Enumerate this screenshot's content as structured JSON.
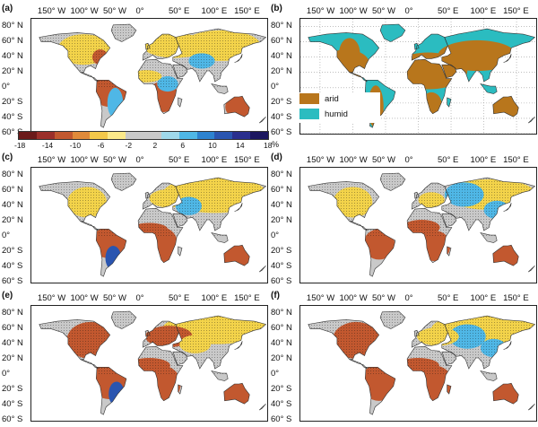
{
  "lon_labels": [
    "150° W",
    "100° W",
    "50° W",
    "0°",
    "50° E",
    "100° E",
    "150° E"
  ],
  "lat_labels": [
    "80° N",
    "60° N",
    "40° N",
    "20° N",
    "0°",
    "20° S",
    "40° S",
    "60° S"
  ],
  "panels": [
    {
      "id": "a",
      "label": "(a)",
      "kind": "change"
    },
    {
      "id": "b",
      "label": "(b)",
      "kind": "classification"
    },
    {
      "id": "c",
      "label": "(c)",
      "kind": "change"
    },
    {
      "id": "d",
      "label": "(d)",
      "kind": "change"
    },
    {
      "id": "e",
      "label": "(e)",
      "kind": "change"
    },
    {
      "id": "f",
      "label": "(f)",
      "kind": "change"
    }
  ],
  "legend_b": [
    {
      "label": "arid",
      "color": "#b8761c"
    },
    {
      "label": "humid",
      "color": "#2bbcc0"
    }
  ],
  "colorbar": {
    "ticks": [
      "-18",
      "-14",
      "-10",
      "-6",
      "-2",
      "2",
      "6",
      "10",
      "14",
      "18"
    ],
    "unit": "%",
    "colors": [
      "#6b1a1a",
      "#9b2f2a",
      "#c2582f",
      "#e08a3a",
      "#f3c84a",
      "#fbe98a",
      "#c9c9c9",
      "#c9c9c9",
      "#9fd8ea",
      "#4fb7e6",
      "#2d83d0",
      "#2a55b0",
      "#2a2f8e",
      "#1c1760"
    ]
  },
  "colors": {
    "land_neutral": "#c9c9c9",
    "dry": "#f3d34a",
    "drier": "#c2582f",
    "wet": "#4fb7e6",
    "wetter": "#2a55b0",
    "ocean": "#ffffff",
    "stipple": "#111111"
  }
}
